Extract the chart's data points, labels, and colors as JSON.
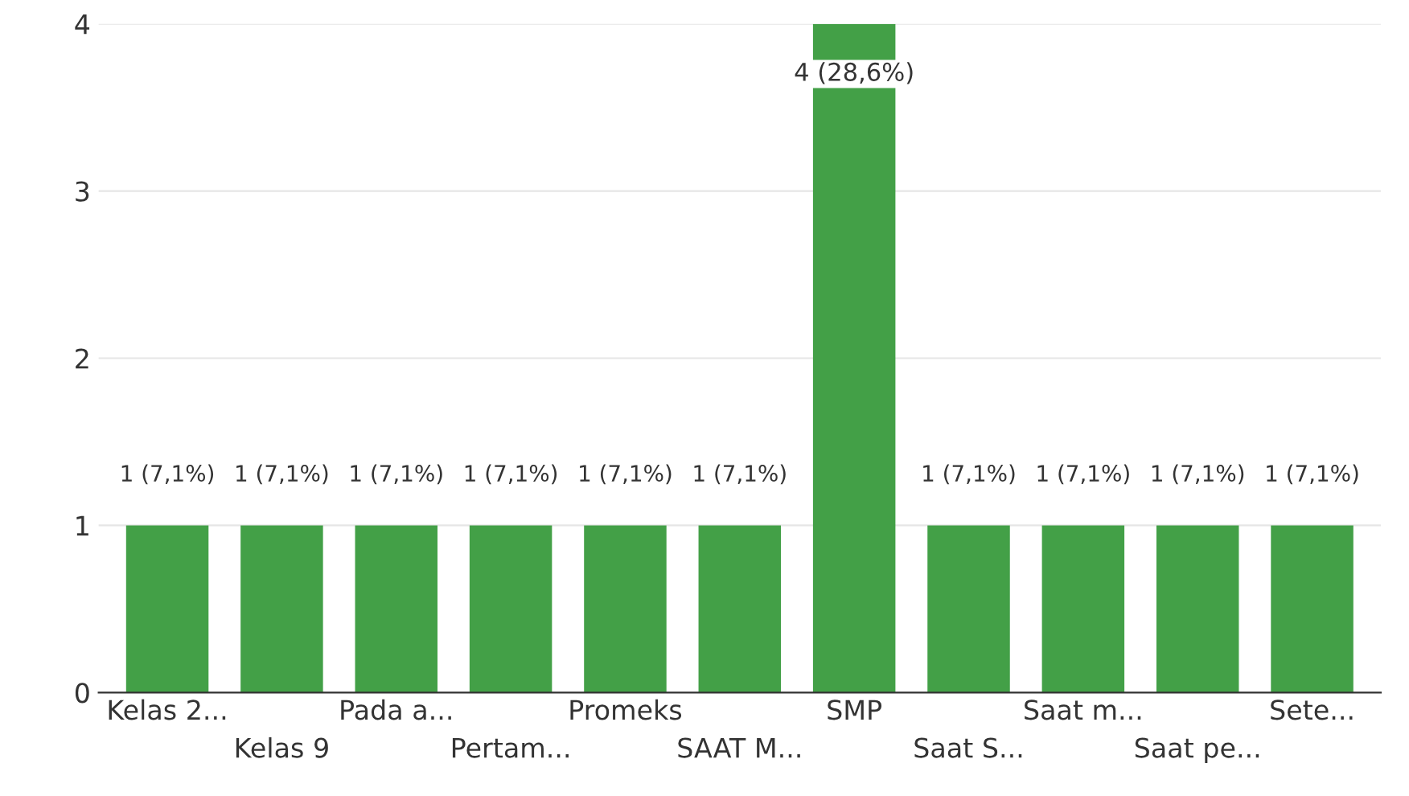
{
  "chart_data": {
    "type": "bar",
    "categories": [
      "Kelas 2...",
      "Kelas 9",
      "Pada a...",
      "Pertam...",
      "Promeks",
      "SAAT M...",
      "SMP",
      "Saat S...",
      "Saat m...",
      "Saat pe...",
      "Sete..."
    ],
    "values": [
      1,
      1,
      1,
      1,
      1,
      1,
      4,
      1,
      1,
      1,
      1
    ],
    "value_labels": [
      "1 (7,1%)",
      "1 (7,1%)",
      "1 (7,1%)",
      "1 (7,1%)",
      "1 (7,1%)",
      "1 (7,1%)",
      "4 (28,6%)",
      "1 (7,1%)",
      "1 (7,1%)",
      "1 (7,1%)",
      "1 (7,1%)"
    ],
    "color": "#43a047",
    "ylim": [
      0,
      4
    ],
    "yticks": [
      0,
      1,
      2,
      3,
      4
    ],
    "grid": "y"
  }
}
